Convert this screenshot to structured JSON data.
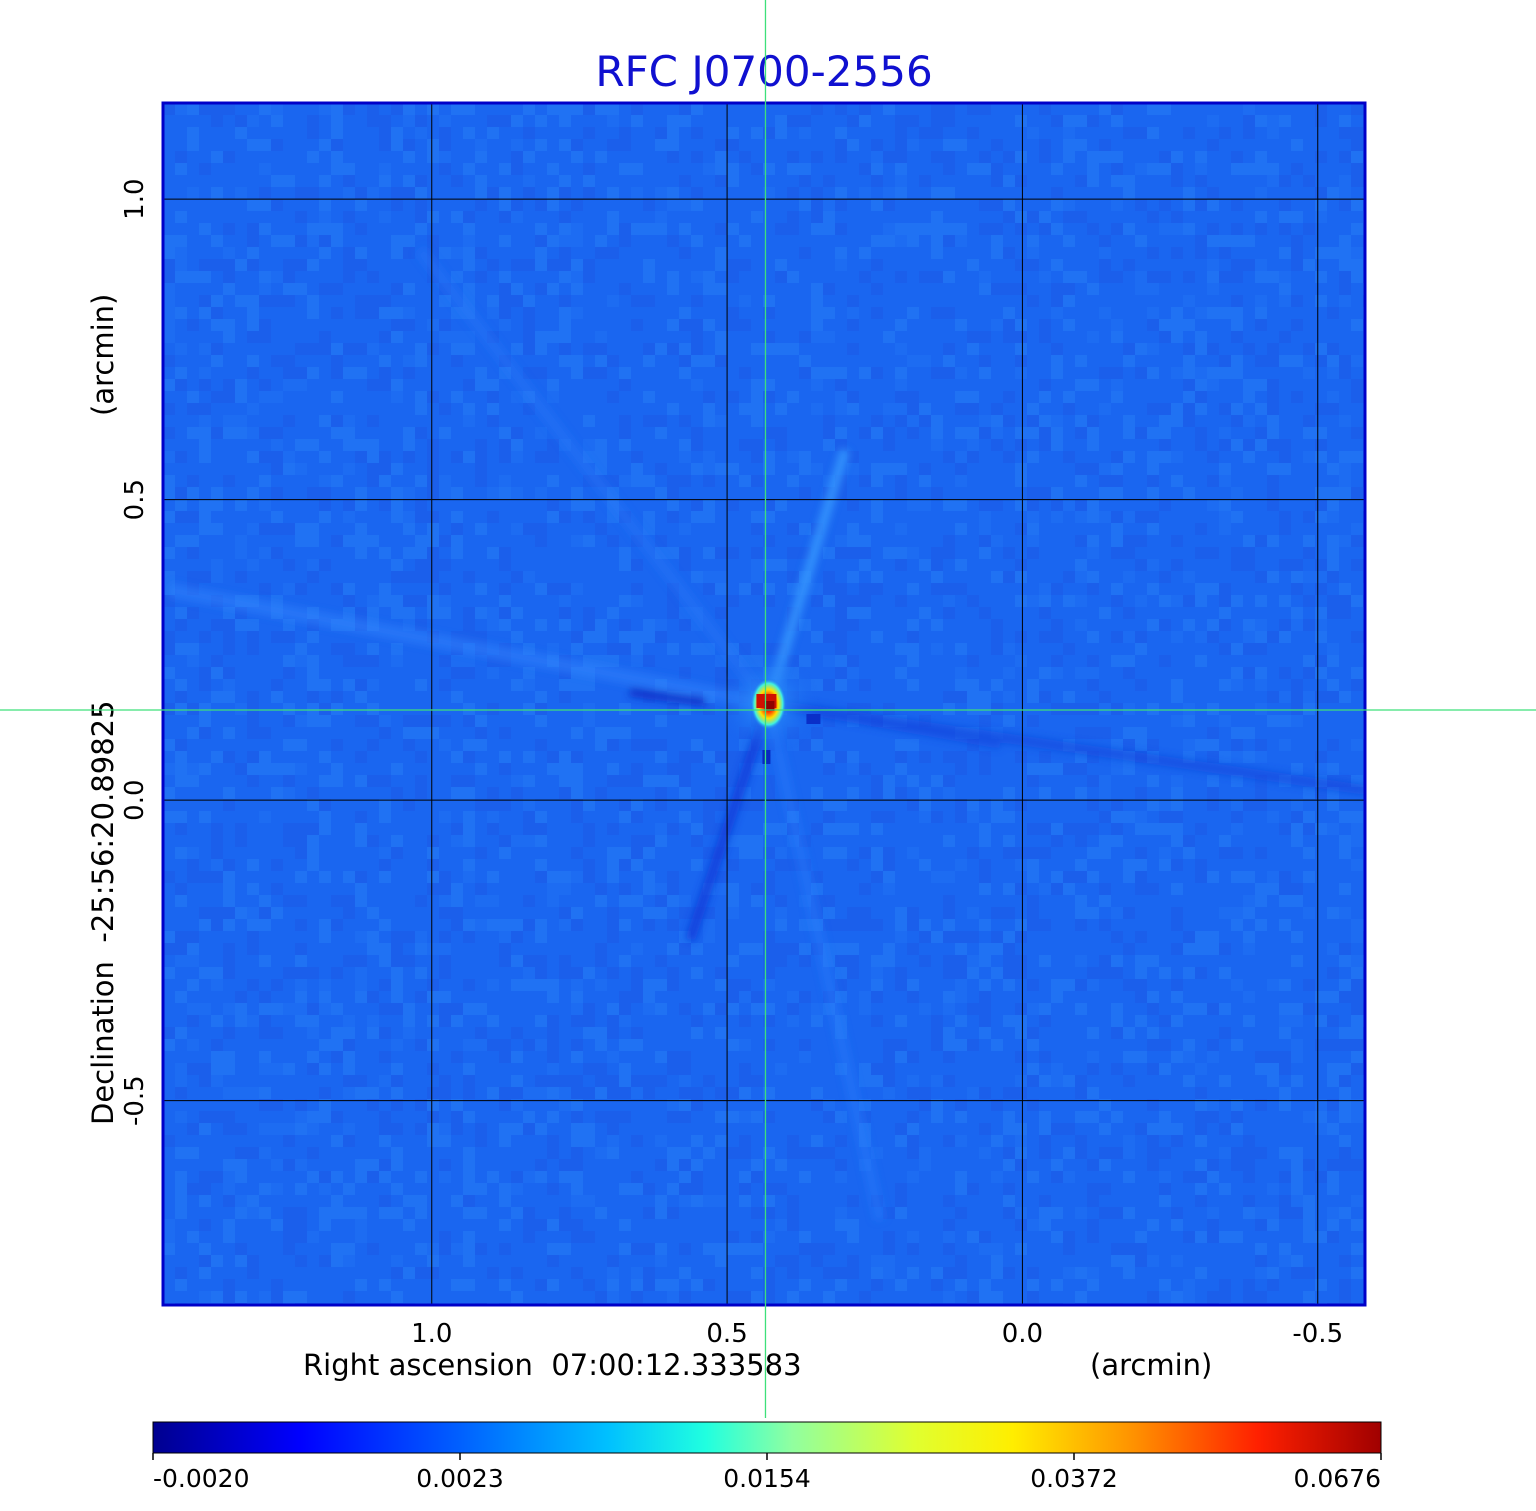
{
  "chart_data": {
    "type": "heatmap",
    "title": "RFC J0700-2556",
    "xlabel": "Right ascension  07:00:12.333583",
    "xunit": "(arcmin)",
    "ylabel": "Declination  -25:56:20.89825",
    "yunit": "(arcmin)",
    "x_ticks": [
      "1.0",
      "0.5",
      "0.0",
      "-0.5"
    ],
    "x_tick_values": [
      1.0,
      0.5,
      0.0,
      -0.5
    ],
    "y_ticks": [
      "1.0",
      "0.5",
      "0.0",
      "-0.5"
    ],
    "y_tick_values": [
      1.0,
      0.5,
      0.0,
      -0.5
    ],
    "xlim": [
      1.455,
      -0.58
    ],
    "ylim": [
      -0.84,
      1.16
    ],
    "grid": true,
    "colormap": "jet",
    "colorbar_ticks": [
      "-0.0020",
      "0.0023",
      "0.0154",
      "0.0372",
      "0.0676"
    ],
    "colorbar_tick_values": [
      -0.002,
      0.0023,
      0.0154,
      0.0372,
      0.0676
    ],
    "peak_position": [
      0.43,
      0.16
    ],
    "crosshair": [
      0.435,
      0.15
    ],
    "background_color": "#1a66f0",
    "crosshair_color": "#3ee07a",
    "title_color": "#1010d0"
  }
}
